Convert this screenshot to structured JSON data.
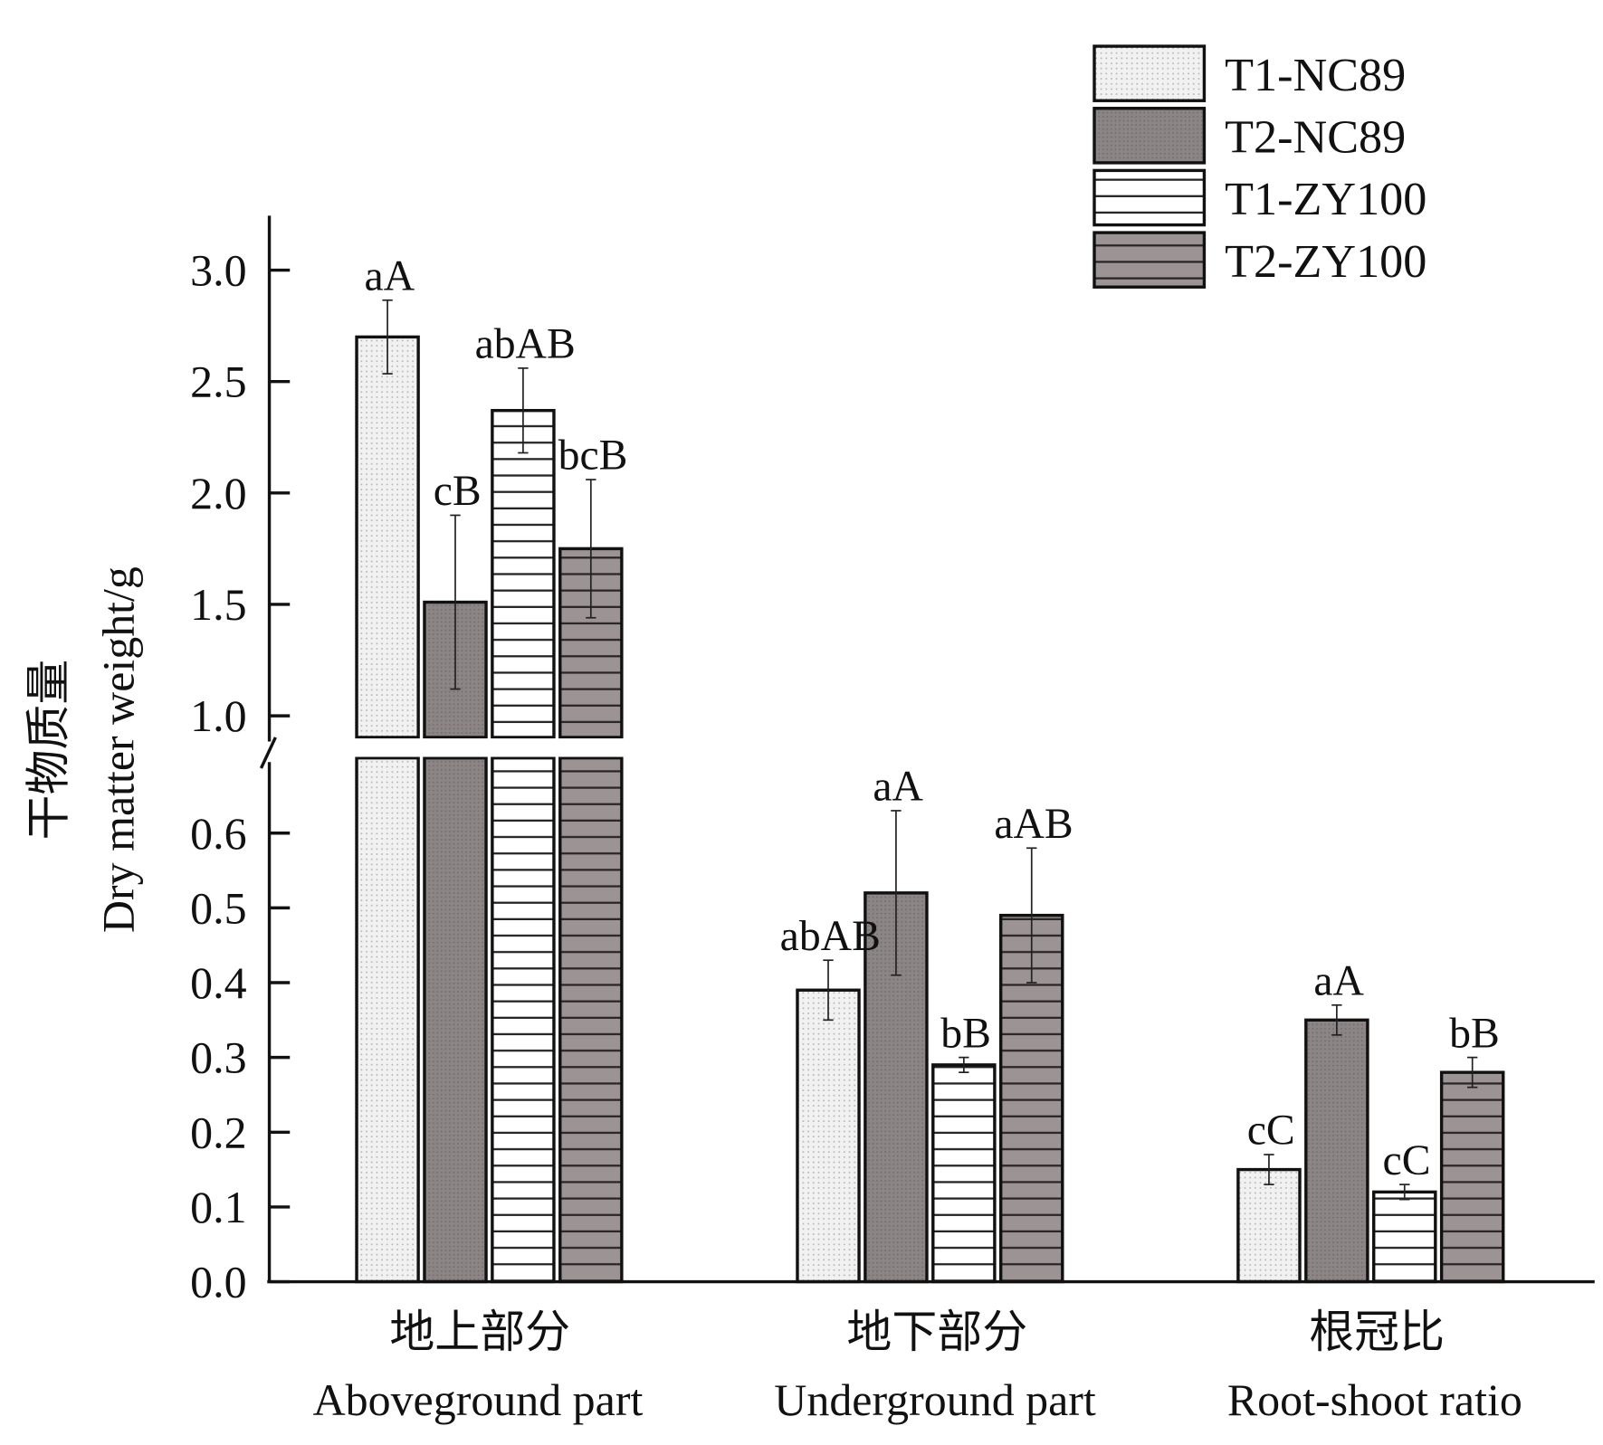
{
  "chart_data": {
    "type": "bar",
    "title": "",
    "ylabel_cn": "干物质量",
    "ylabel": "Dry matter weight/g",
    "categories": [
      {
        "cn": "地上部分",
        "en": "Aboveground part"
      },
      {
        "cn": "地下部分",
        "en": "Underground part"
      },
      {
        "cn": "根冠比",
        "en": "Root-shoot ratio"
      }
    ],
    "y_axis": {
      "broken": true,
      "lower_range": [
        0,
        0.7
      ],
      "upper_range": [
        1.0,
        3.2
      ],
      "lower_ticks": [
        "0.0",
        "0.1",
        "0.2",
        "0.3",
        "0.4",
        "0.5",
        "0.6"
      ],
      "upper_ticks": [
        "1.0",
        "1.5",
        "2.0",
        "2.5",
        "3.0"
      ]
    },
    "legend_position": "top-right",
    "series": [
      {
        "name": "T1-NC89",
        "pattern": "dots-light",
        "color": "#ececec",
        "values": [
          2.7,
          0.39,
          0.15
        ],
        "errors": [
          0.165,
          0.04,
          0.02
        ],
        "labels": [
          "aA",
          "abAB",
          "cC"
        ]
      },
      {
        "name": "T2-NC89",
        "pattern": "dots-dark",
        "color": "#8c8585",
        "values": [
          1.51,
          0.52,
          0.35
        ],
        "errors": [
          0.39,
          0.11,
          0.02
        ],
        "labels": [
          "cB",
          "aA",
          "aA"
        ]
      },
      {
        "name": "T1-ZY100",
        "pattern": "hlines-white",
        "color": "#ffffff",
        "values": [
          2.37,
          0.29,
          0.12
        ],
        "errors": [
          0.19,
          0.01,
          0.01
        ],
        "labels": [
          "abAB",
          "bB",
          "cC"
        ]
      },
      {
        "name": "T2-ZY100",
        "pattern": "hlines-grey",
        "color": "#9c9494",
        "values": [
          1.75,
          0.49,
          0.28
        ],
        "errors": [
          0.31,
          0.09,
          0.02
        ],
        "labels": [
          "bcB",
          "aAB",
          "bB"
        ]
      }
    ]
  }
}
